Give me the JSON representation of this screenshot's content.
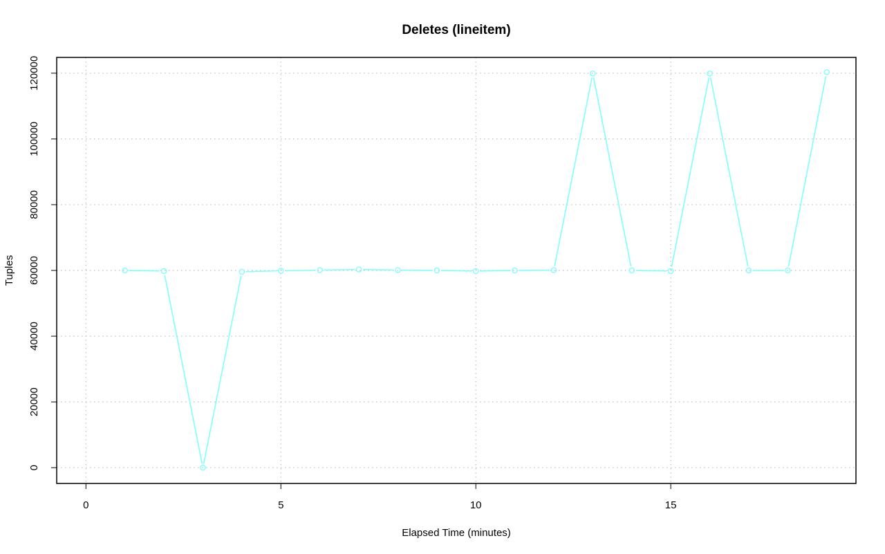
{
  "chart_data": {
    "type": "line",
    "title": "Deletes (lineitem)",
    "xlabel": "Elapsed Time (minutes)",
    "ylabel": "Tuples",
    "xlim": [
      -0.75,
      19.75
    ],
    "ylim": [
      -4800,
      124800
    ],
    "x_ticks": [
      0,
      5,
      10,
      15
    ],
    "y_ticks": [
      0,
      20000,
      40000,
      60000,
      80000,
      100000,
      120000
    ],
    "x_tick_labels": [
      "0",
      "5",
      "10",
      "15"
    ],
    "y_tick_labels": [
      "0",
      "20000",
      "40000",
      "60000",
      "80000",
      "100000",
      "120000"
    ],
    "grid": true,
    "legend": "none",
    "colors": {
      "series": "#7fffff",
      "grid": "#bebebe",
      "axis": "#000000"
    },
    "series": [
      {
        "x": [
          1,
          2,
          3,
          4,
          5,
          6,
          7,
          8,
          9,
          10,
          11,
          12,
          13,
          14,
          15,
          16,
          17,
          18,
          19
        ],
        "values": [
          60000,
          59800,
          0,
          59600,
          59900,
          60100,
          60300,
          60100,
          60000,
          59800,
          60000,
          60100,
          119900,
          60000,
          59800,
          119900,
          60000,
          60000,
          120300
        ]
      }
    ]
  }
}
